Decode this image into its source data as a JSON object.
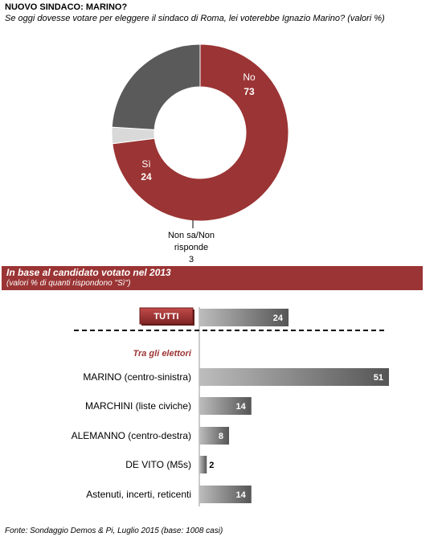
{
  "header": {
    "title": "NUOVO SINDACO: MARINO?",
    "subtitle": "Se oggi dovesse votare per eleggere il sindaco di Roma, lei voterebbe Ignazio Marino? (valori %)"
  },
  "section": {
    "title": "In base al candidato votato nel 2013",
    "subtitle": "(valori % di quanti rispondono \"Sì\")"
  },
  "footer": {
    "source": "Fonte: Sondaggio Demos & Pi, Luglio 2015 (base: 1008 casi)"
  },
  "chart_data": [
    {
      "type": "pie",
      "slices": [
        {
          "label": "No",
          "value": 73,
          "color": "#9b3434"
        },
        {
          "label": "Non sa/Non risponde",
          "value": 3,
          "color": "#d9d9d9"
        },
        {
          "label": "Sì",
          "value": 24,
          "color": "#5a5a5a"
        }
      ]
    },
    {
      "type": "bar",
      "total": {
        "label": "TUTTI",
        "value": 24
      },
      "group_label": "Tra gli elettori",
      "categories": [
        "MARINO (centro-sinistra)",
        "MARCHINI (liste civiche)",
        "ALEMANNO (centro-destra)",
        "DE VITO (M5s)",
        "Astenuti, incerti, reticenti"
      ],
      "values": [
        51,
        14,
        8,
        2,
        14
      ],
      "colors": {
        "bar": "#555555",
        "accent": "#9b3434"
      }
    }
  ]
}
